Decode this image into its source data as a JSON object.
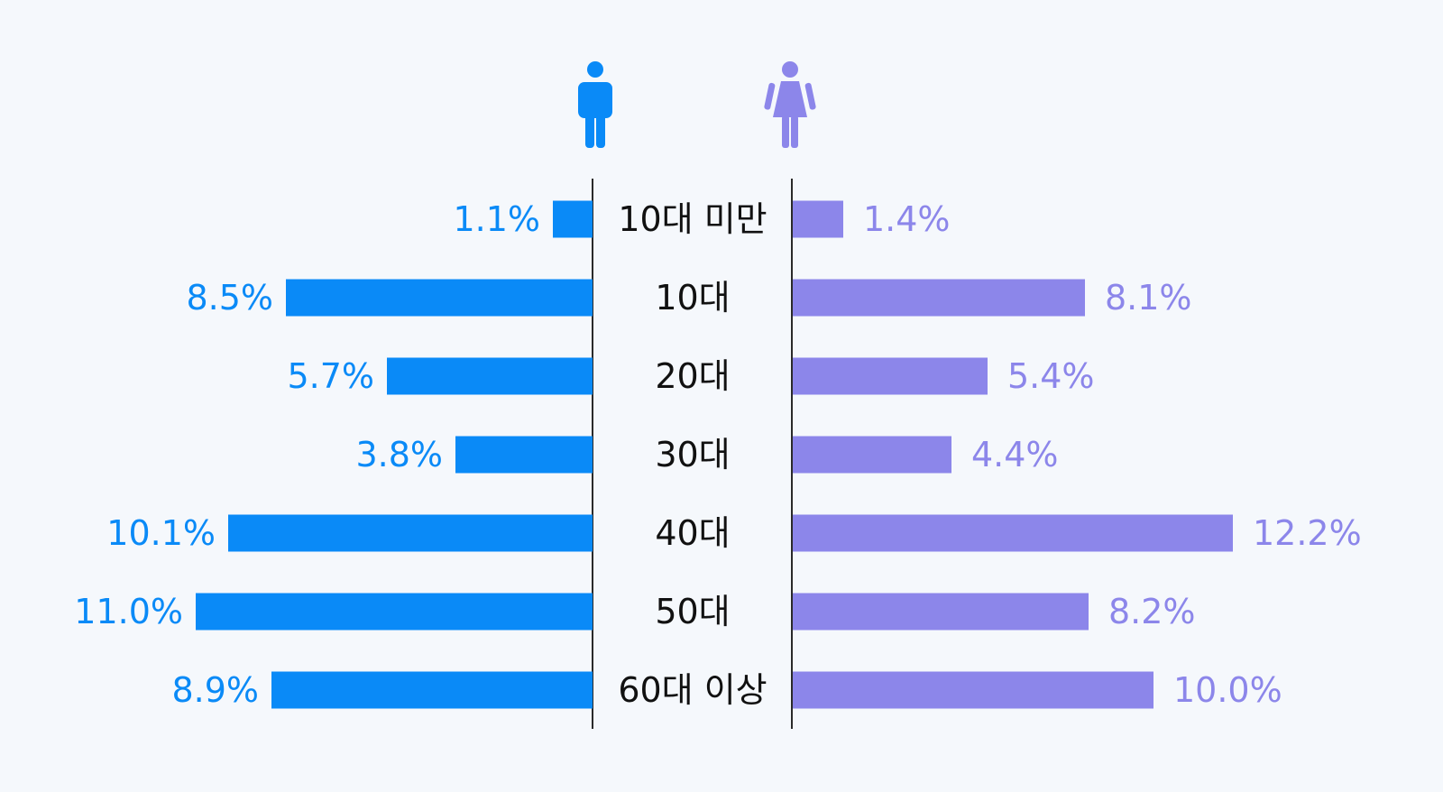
{
  "chart_data": {
    "type": "bar",
    "categories": [
      "10대 미만",
      "10대",
      "20대",
      "30대",
      "40대",
      "50대",
      "60대 이상"
    ],
    "series": [
      {
        "values": [
          1.1,
          8.5,
          5.7,
          3.8,
          10.1,
          11.0,
          8.9
        ],
        "labels": [
          "1.1%",
          "8.5%",
          "5.7%",
          "3.8%",
          "10.1%",
          "11.0%",
          "8.9%"
        ],
        "color": "#0a8af7",
        "icon": "male-person-icon"
      },
      {
        "values": [
          1.4,
          8.1,
          5.4,
          4.4,
          12.2,
          8.2,
          10.0
        ],
        "labels": [
          "1.4%",
          "8.1%",
          "5.4%",
          "4.4%",
          "12.2%",
          "8.2%",
          "10.0%"
        ],
        "color": "#8c86ea",
        "icon": "female-person-icon"
      }
    ],
    "orientation": "horizontal-mirrored",
    "grid": false
  }
}
